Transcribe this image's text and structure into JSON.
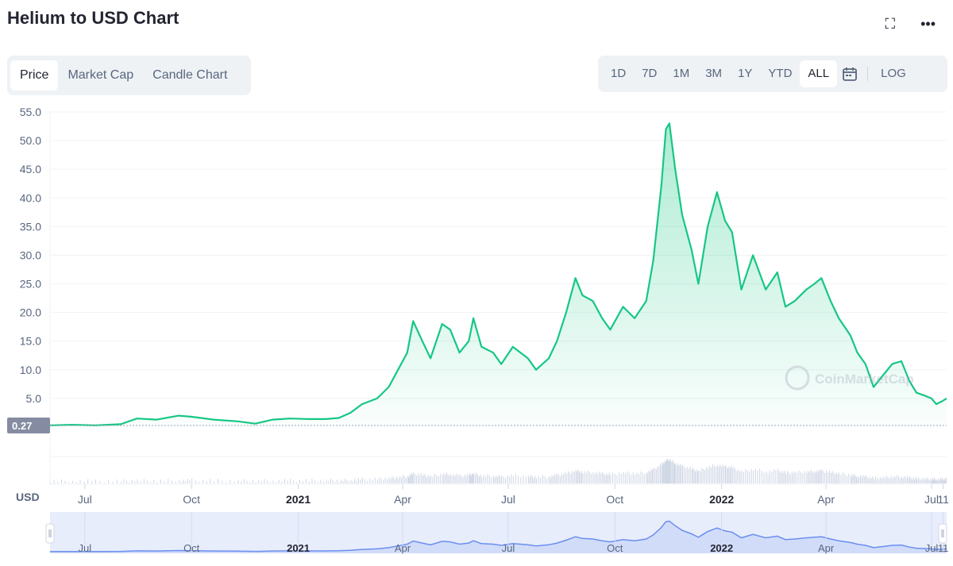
{
  "header": {
    "title": "Helium to USD Chart",
    "fullscreen_icon": "fullscreen-icon",
    "more_icon": "more-horizontal-icon"
  },
  "tabs": [
    {
      "label": "Price",
      "active": true
    },
    {
      "label": "Market Cap",
      "active": false
    },
    {
      "label": "Candle Chart",
      "active": false
    }
  ],
  "ranges": [
    {
      "label": "1D"
    },
    {
      "label": "7D"
    },
    {
      "label": "1M"
    },
    {
      "label": "3M"
    },
    {
      "label": "1Y"
    },
    {
      "label": "YTD"
    },
    {
      "label": "ALL",
      "active": true
    }
  ],
  "range_calendar_icon": "calendar-icon",
  "log_label": "LOG",
  "watermark": "CoinMarketCap",
  "colors": {
    "line": "#16c784",
    "area": "#16c784",
    "navigator": "#6b8ff0",
    "navigator_bg": "#e8edfc",
    "grid": "#eff2f5",
    "volume": "#cfd6e4"
  },
  "chart_data": {
    "type": "area",
    "currency_label": "USD",
    "current_price_label": "0.27",
    "baseline_value": 0.27,
    "ylim": [
      0,
      55
    ],
    "yticks": [
      "5.0",
      "10.0",
      "15.0",
      "20.0",
      "25.0",
      "30.0",
      "35.0",
      "40.0",
      "45.0",
      "50.0",
      "55.0"
    ],
    "xlim": [
      "2020-06-01",
      "2022-07-14"
    ],
    "xticks": [
      {
        "date": "2020-07-01",
        "label": "Jul",
        "bold": false
      },
      {
        "date": "2020-10-01",
        "label": "Oct",
        "bold": false
      },
      {
        "date": "2021-01-01",
        "label": "2021",
        "bold": true
      },
      {
        "date": "2021-04-01",
        "label": "Apr",
        "bold": false
      },
      {
        "date": "2021-07-01",
        "label": "Jul",
        "bold": false
      },
      {
        "date": "2021-10-01",
        "label": "Oct",
        "bold": false
      },
      {
        "date": "2022-01-01",
        "label": "2022",
        "bold": true
      },
      {
        "date": "2022-04-01",
        "label": "Apr",
        "bold": false
      },
      {
        "date": "2022-07-01",
        "label": "Jul",
        "bold": false
      },
      {
        "date": "2022-07-11",
        "label": "11",
        "bold": false
      }
    ],
    "series": [
      {
        "points": [
          [
            "2020-06-01",
            0.3
          ],
          [
            "2020-06-20",
            0.4
          ],
          [
            "2020-07-10",
            0.3
          ],
          [
            "2020-08-01",
            0.5
          ],
          [
            "2020-08-15",
            1.5
          ],
          [
            "2020-09-01",
            1.3
          ],
          [
            "2020-09-20",
            2.0
          ],
          [
            "2020-10-01",
            1.8
          ],
          [
            "2020-10-20",
            1.3
          ],
          [
            "2020-11-10",
            1.0
          ],
          [
            "2020-11-25",
            0.6
          ],
          [
            "2020-12-10",
            1.3
          ],
          [
            "2020-12-25",
            1.5
          ],
          [
            "2021-01-10",
            1.4
          ],
          [
            "2021-01-25",
            1.4
          ],
          [
            "2021-02-05",
            1.6
          ],
          [
            "2021-02-15",
            2.5
          ],
          [
            "2021-02-25",
            4.0
          ],
          [
            "2021-03-10",
            5.0
          ],
          [
            "2021-03-20",
            7.0
          ],
          [
            "2021-03-28",
            10.0
          ],
          [
            "2021-04-05",
            13.0
          ],
          [
            "2021-04-10",
            18.5
          ],
          [
            "2021-04-18",
            15.0
          ],
          [
            "2021-04-25",
            12.0
          ],
          [
            "2021-05-05",
            18.0
          ],
          [
            "2021-05-12",
            17.0
          ],
          [
            "2021-05-20",
            13.0
          ],
          [
            "2021-05-28",
            15.0
          ],
          [
            "2021-06-01",
            19.0
          ],
          [
            "2021-06-08",
            14.0
          ],
          [
            "2021-06-18",
            13.0
          ],
          [
            "2021-06-25",
            11.0
          ],
          [
            "2021-07-05",
            14.0
          ],
          [
            "2021-07-18",
            12.0
          ],
          [
            "2021-07-25",
            10.0
          ],
          [
            "2021-08-05",
            12.0
          ],
          [
            "2021-08-12",
            15.0
          ],
          [
            "2021-08-20",
            20.0
          ],
          [
            "2021-08-28",
            26.0
          ],
          [
            "2021-09-03",
            23.0
          ],
          [
            "2021-09-12",
            22.0
          ],
          [
            "2021-09-20",
            19.0
          ],
          [
            "2021-09-27",
            17.0
          ],
          [
            "2021-10-08",
            21.0
          ],
          [
            "2021-10-18",
            19.0
          ],
          [
            "2021-10-28",
            22.0
          ],
          [
            "2021-11-03",
            29.0
          ],
          [
            "2021-11-10",
            42.0
          ],
          [
            "2021-11-14",
            52.0
          ],
          [
            "2021-11-17",
            53.0
          ],
          [
            "2021-11-22",
            45.0
          ],
          [
            "2021-11-28",
            37.0
          ],
          [
            "2021-12-06",
            31.0
          ],
          [
            "2021-12-12",
            25.0
          ],
          [
            "2021-12-20",
            35.0
          ],
          [
            "2021-12-28",
            41.0
          ],
          [
            "2022-01-04",
            36.0
          ],
          [
            "2022-01-10",
            34.0
          ],
          [
            "2022-01-18",
            24.0
          ],
          [
            "2022-01-28",
            30.0
          ],
          [
            "2022-02-08",
            24.0
          ],
          [
            "2022-02-18",
            27.0
          ],
          [
            "2022-02-25",
            21.0
          ],
          [
            "2022-03-05",
            22.0
          ],
          [
            "2022-03-15",
            24.0
          ],
          [
            "2022-03-22",
            25.0
          ],
          [
            "2022-03-28",
            26.0
          ],
          [
            "2022-04-05",
            22.0
          ],
          [
            "2022-04-12",
            19.0
          ],
          [
            "2022-04-22",
            16.0
          ],
          [
            "2022-04-28",
            13.0
          ],
          [
            "2022-05-05",
            11.0
          ],
          [
            "2022-05-12",
            7.0
          ],
          [
            "2022-05-20",
            9.0
          ],
          [
            "2022-05-28",
            11.0
          ],
          [
            "2022-06-05",
            11.5
          ],
          [
            "2022-06-12",
            8.0
          ],
          [
            "2022-06-18",
            6.0
          ],
          [
            "2022-06-25",
            5.5
          ],
          [
            "2022-07-01",
            5.0
          ],
          [
            "2022-07-05",
            4.0
          ],
          [
            "2022-07-10",
            4.5
          ],
          [
            "2022-07-14",
            5.0
          ]
        ]
      }
    ]
  }
}
